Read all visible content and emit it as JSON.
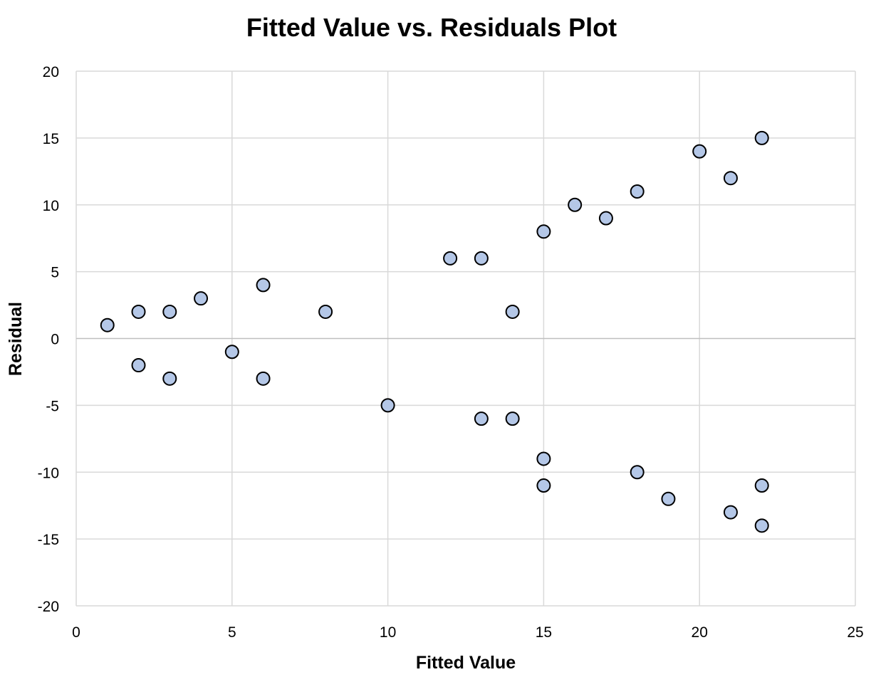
{
  "chart_data": {
    "type": "scatter",
    "title": "Fitted Value vs. Residuals Plot",
    "xlabel": "Fitted Value",
    "ylabel": "Residual",
    "xlim": [
      0,
      25
    ],
    "ylim": [
      -20,
      20
    ],
    "x_ticks": [
      0,
      5,
      10,
      15,
      20,
      25
    ],
    "y_ticks": [
      20,
      15,
      10,
      5,
      0,
      -5,
      -10,
      -15,
      -20
    ],
    "x_tick_labels": [
      "0",
      "5",
      "10",
      "15",
      "20",
      "25"
    ],
    "y_tick_labels": [
      "20",
      "15",
      "10",
      "5",
      "0",
      "-5",
      "-10",
      "-15",
      "-20"
    ],
    "grid": true,
    "legend": false,
    "marker_fill": "#b4c7e7",
    "marker_edge": "#000000",
    "gridline_color": "#d9d9d9",
    "zero_line_color": "#bfbfbf",
    "series": [
      {
        "points": [
          {
            "x": 1,
            "y": 1
          },
          {
            "x": 2,
            "y": 2
          },
          {
            "x": 2,
            "y": -2
          },
          {
            "x": 3,
            "y": 2
          },
          {
            "x": 3,
            "y": -3
          },
          {
            "x": 4,
            "y": 3
          },
          {
            "x": 5,
            "y": -1
          },
          {
            "x": 6,
            "y": 4
          },
          {
            "x": 6,
            "y": -3
          },
          {
            "x": 8,
            "y": 2
          },
          {
            "x": 10,
            "y": -5
          },
          {
            "x": 12,
            "y": 6
          },
          {
            "x": 13,
            "y": 6
          },
          {
            "x": 13,
            "y": -6
          },
          {
            "x": 14,
            "y": 2
          },
          {
            "x": 14,
            "y": -6
          },
          {
            "x": 15,
            "y": 8
          },
          {
            "x": 15,
            "y": -9
          },
          {
            "x": 15,
            "y": -11
          },
          {
            "x": 16,
            "y": 10
          },
          {
            "x": 17,
            "y": 9
          },
          {
            "x": 18,
            "y": 11
          },
          {
            "x": 18,
            "y": -10
          },
          {
            "x": 19,
            "y": -12
          },
          {
            "x": 20,
            "y": 14
          },
          {
            "x": 21,
            "y": 12
          },
          {
            "x": 21,
            "y": -13
          },
          {
            "x": 22,
            "y": 15
          },
          {
            "x": 22,
            "y": -11
          },
          {
            "x": 22,
            "y": -14
          }
        ]
      }
    ]
  }
}
